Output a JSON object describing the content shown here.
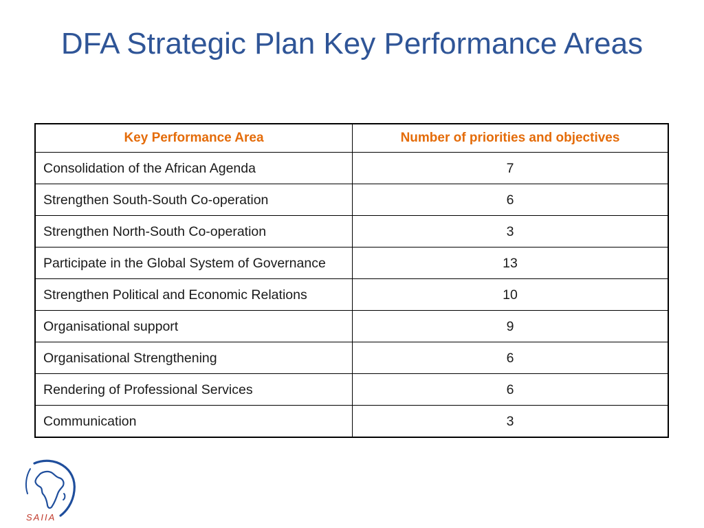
{
  "slide": {
    "title": "DFA Strategic Plan Key Performance Areas"
  },
  "table": {
    "headers": [
      "Key Performance Area",
      "Number of priorities and objectives"
    ],
    "rows": [
      {
        "area": "Consolidation of the African Agenda",
        "count": "7"
      },
      {
        "area": "Strengthen South-South Co-operation",
        "count": "6"
      },
      {
        "area": "Strengthen North-South Co-operation",
        "count": "3"
      },
      {
        "area": "Participate in the Global System of Governance",
        "count": "13"
      },
      {
        "area": "Strengthen Political and Economic Relations",
        "count": "10"
      },
      {
        "area": "Organisational support",
        "count": "9"
      },
      {
        "area": "Organisational Strengthening",
        "count": "6"
      },
      {
        "area": "Rendering of Professional Services",
        "count": "6"
      },
      {
        "area": "Communication",
        "count": "3"
      }
    ]
  },
  "logo": {
    "text": "SAIIA",
    "icon": "africa-map-icon",
    "colors": {
      "map": "#1f4e9c",
      "text": "#c0392b"
    }
  },
  "colors": {
    "title": "#2f5597",
    "header_text": "#e46c0a"
  }
}
